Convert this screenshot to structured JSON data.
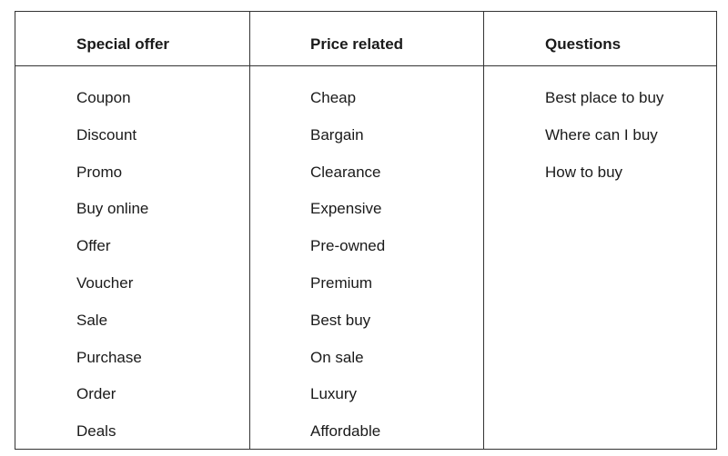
{
  "table": {
    "columns": [
      {
        "header": "Special offer",
        "items": [
          "Coupon",
          "Discount",
          "Promo",
          "Buy online",
          "Offer",
          "Voucher",
          "Sale",
          "Purchase",
          "Order",
          "Deals"
        ]
      },
      {
        "header": "Price related",
        "items": [
          "Cheap",
          "Bargain",
          "Clearance",
          "Expensive",
          "Pre-owned",
          "Premium",
          "Best buy",
          "On sale",
          "Luxury",
          "Affordable"
        ]
      },
      {
        "header": "Questions",
        "items": [
          "Best place to buy",
          "Where can I buy",
          "How to buy"
        ]
      }
    ]
  },
  "colors": {
    "border": "#333333",
    "text": "#1a1a1a",
    "background": "#ffffff"
  }
}
